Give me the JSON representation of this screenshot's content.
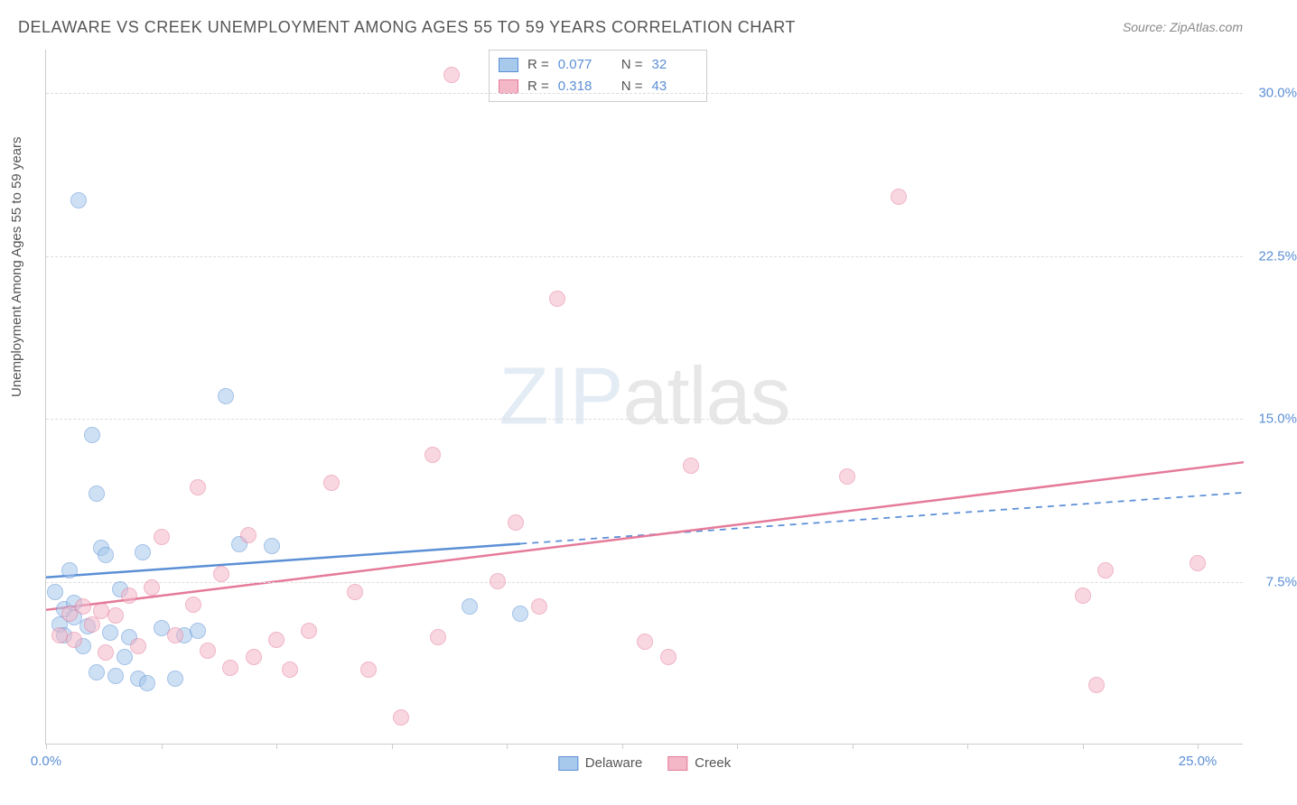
{
  "title": "DELAWARE VS CREEK UNEMPLOYMENT AMONG AGES 55 TO 59 YEARS CORRELATION CHART",
  "source": "Source: ZipAtlas.com",
  "y_axis_label": "Unemployment Among Ages 55 to 59 years",
  "watermark_bold": "ZIP",
  "watermark_thin": "atlas",
  "chart": {
    "type": "scatter",
    "background_color": "#ffffff",
    "grid_color": "#dddddd",
    "axis_color": "#cccccc",
    "tick_label_color": "#5b8fd6",
    "xlim": [
      0,
      26
    ],
    "ylim": [
      0,
      32
    ],
    "x_ticks": [
      0,
      2.5,
      5,
      7.5,
      10,
      12.5,
      15,
      17.5,
      20,
      22.5,
      25
    ],
    "x_tick_labels": {
      "0": "0.0%",
      "25": "25.0%"
    },
    "y_gridlines": [
      7.5,
      15,
      22.5,
      30
    ],
    "y_tick_labels": {
      "7.5": "7.5%",
      "15": "15.0%",
      "22.5": "22.5%",
      "30": "30.0%"
    },
    "point_radius": 9,
    "point_opacity": 0.55,
    "series": [
      {
        "name": "Delaware",
        "color_fill": "#a7c9ec",
        "color_stroke": "#5b8fd6",
        "r_value": "0.077",
        "n_value": "32",
        "trend": {
          "x1": 0,
          "y1": 7.7,
          "x2": 26,
          "y2": 11.6,
          "solid_until_x": 10.3,
          "stroke_width": 2.5
        },
        "points": [
          [
            0.2,
            7.0
          ],
          [
            0.3,
            5.5
          ],
          [
            0.4,
            6.2
          ],
          [
            0.4,
            5.0
          ],
          [
            0.5,
            8.0
          ],
          [
            0.6,
            5.8
          ],
          [
            0.6,
            6.5
          ],
          [
            0.7,
            25.0
          ],
          [
            0.8,
            4.5
          ],
          [
            0.9,
            5.4
          ],
          [
            1.0,
            14.2
          ],
          [
            1.1,
            11.5
          ],
          [
            1.1,
            3.3
          ],
          [
            1.2,
            9.0
          ],
          [
            1.3,
            8.7
          ],
          [
            1.4,
            5.1
          ],
          [
            1.5,
            3.1
          ],
          [
            1.6,
            7.1
          ],
          [
            1.7,
            4.0
          ],
          [
            1.8,
            4.9
          ],
          [
            2.0,
            3.0
          ],
          [
            2.1,
            8.8
          ],
          [
            2.2,
            2.8
          ],
          [
            2.5,
            5.3
          ],
          [
            2.8,
            3.0
          ],
          [
            3.0,
            5.0
          ],
          [
            3.3,
            5.2
          ],
          [
            3.9,
            16.0
          ],
          [
            4.2,
            9.2
          ],
          [
            4.9,
            9.1
          ],
          [
            9.2,
            6.3
          ],
          [
            10.3,
            6.0
          ]
        ]
      },
      {
        "name": "Creek",
        "color_fill": "#f3b7c7",
        "color_stroke": "#e57a9a",
        "r_value": "0.318",
        "n_value": "43",
        "trend": {
          "x1": 0,
          "y1": 6.2,
          "x2": 26,
          "y2": 13.0,
          "solid_until_x": 26,
          "stroke_width": 2.5
        },
        "points": [
          [
            0.3,
            5.0
          ],
          [
            0.5,
            6.0
          ],
          [
            0.6,
            4.8
          ],
          [
            0.8,
            6.3
          ],
          [
            1.0,
            5.5
          ],
          [
            1.2,
            6.1
          ],
          [
            1.3,
            4.2
          ],
          [
            1.5,
            5.9
          ],
          [
            1.8,
            6.8
          ],
          [
            2.0,
            4.5
          ],
          [
            2.3,
            7.2
          ],
          [
            2.5,
            9.5
          ],
          [
            2.8,
            5.0
          ],
          [
            3.2,
            6.4
          ],
          [
            3.3,
            11.8
          ],
          [
            3.5,
            4.3
          ],
          [
            3.8,
            7.8
          ],
          [
            4.0,
            3.5
          ],
          [
            4.4,
            9.6
          ],
          [
            4.5,
            4.0
          ],
          [
            5.0,
            4.8
          ],
          [
            5.3,
            3.4
          ],
          [
            5.7,
            5.2
          ],
          [
            6.2,
            12.0
          ],
          [
            6.7,
            7.0
          ],
          [
            7.0,
            3.4
          ],
          [
            7.7,
            1.2
          ],
          [
            8.4,
            13.3
          ],
          [
            8.5,
            4.9
          ],
          [
            8.8,
            30.8
          ],
          [
            9.8,
            7.5
          ],
          [
            10.2,
            10.2
          ],
          [
            10.7,
            6.3
          ],
          [
            11.1,
            20.5
          ],
          [
            13.0,
            4.7
          ],
          [
            13.5,
            4.0
          ],
          [
            14.0,
            12.8
          ],
          [
            17.4,
            12.3
          ],
          [
            18.5,
            25.2
          ],
          [
            22.5,
            6.8
          ],
          [
            22.8,
            2.7
          ],
          [
            23.0,
            8.0
          ],
          [
            25.0,
            8.3
          ]
        ]
      }
    ],
    "legend_top": {
      "r_label": "R =",
      "n_label": "N ="
    },
    "legend_bottom_labels": [
      "Delaware",
      "Creek"
    ]
  }
}
